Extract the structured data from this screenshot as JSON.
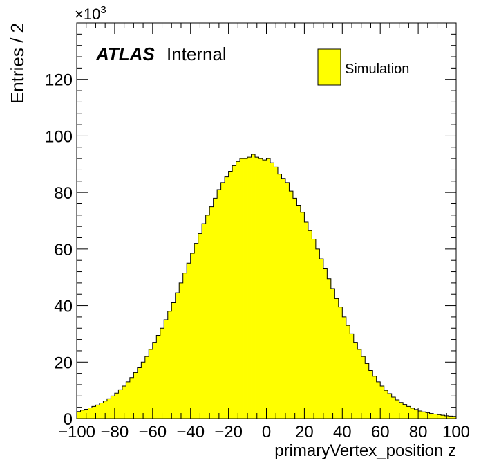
{
  "chart_data": {
    "type": "histogram",
    "xlabel": "primaryVertex_position z",
    "ylabel": "Entries / 2",
    "y_multiplier_label": "×10",
    "y_multiplier_exponent": "3",
    "xlim": [
      -100,
      100
    ],
    "ylim": [
      0,
      140
    ],
    "bin_width": 2,
    "x_ticks": [
      -100,
      -80,
      -60,
      -40,
      -20,
      0,
      20,
      40,
      60,
      80,
      100
    ],
    "x_tick_labels": [
      "−100",
      "−80",
      "−60",
      "−40",
      "−20",
      "0",
      "20",
      "40",
      "60",
      "80",
      "100"
    ],
    "y_ticks": [
      0,
      20,
      40,
      60,
      80,
      100,
      120
    ],
    "y_tick_labels": [
      "0",
      "20",
      "40",
      "60",
      "80",
      "100",
      "120"
    ],
    "fill_color": "#ffff00",
    "line_color": "#000000",
    "legend": {
      "position": "top-right",
      "entries": [
        {
          "label": "Simulation",
          "color": "#ffff00"
        }
      ]
    },
    "annotation": {
      "bold": "ATLAS",
      "normal": "Internal"
    },
    "grid": false,
    "series": [
      {
        "name": "Simulation",
        "values": [
          2.5,
          3.0,
          3.3,
          3.8,
          4.3,
          4.8,
          5.5,
          6.2,
          7.0,
          8.0,
          9.0,
          10.2,
          11.5,
          13.0,
          14.5,
          16.3,
          18.0,
          20.0,
          22.0,
          24.5,
          27.0,
          29.5,
          32.0,
          35.0,
          38.0,
          41.0,
          44.5,
          48.0,
          51.5,
          55.0,
          58.5,
          62.0,
          65.5,
          69.0,
          72.0,
          75.0,
          78.0,
          81.0,
          83.5,
          85.5,
          87.5,
          89.5,
          91.0,
          92.0,
          92.0,
          92.5,
          93.5,
          92.5,
          92.0,
          91.5,
          92.0,
          90.5,
          89.0,
          86.5,
          85.0,
          83.5,
          80.5,
          78.0,
          75.5,
          73.0,
          69.5,
          66.5,
          63.5,
          60.0,
          56.5,
          53.0,
          49.5,
          46.0,
          42.5,
          39.5,
          36.0,
          33.0,
          30.0,
          27.0,
          24.5,
          22.0,
          19.5,
          17.0,
          15.0,
          13.0,
          11.5,
          10.0,
          8.8,
          7.6,
          6.6,
          5.7,
          5.0,
          4.3,
          3.7,
          3.2,
          2.7,
          2.4,
          2.1,
          1.8,
          1.6,
          1.4,
          1.2,
          1.0,
          0.9,
          0.8
        ]
      }
    ]
  }
}
